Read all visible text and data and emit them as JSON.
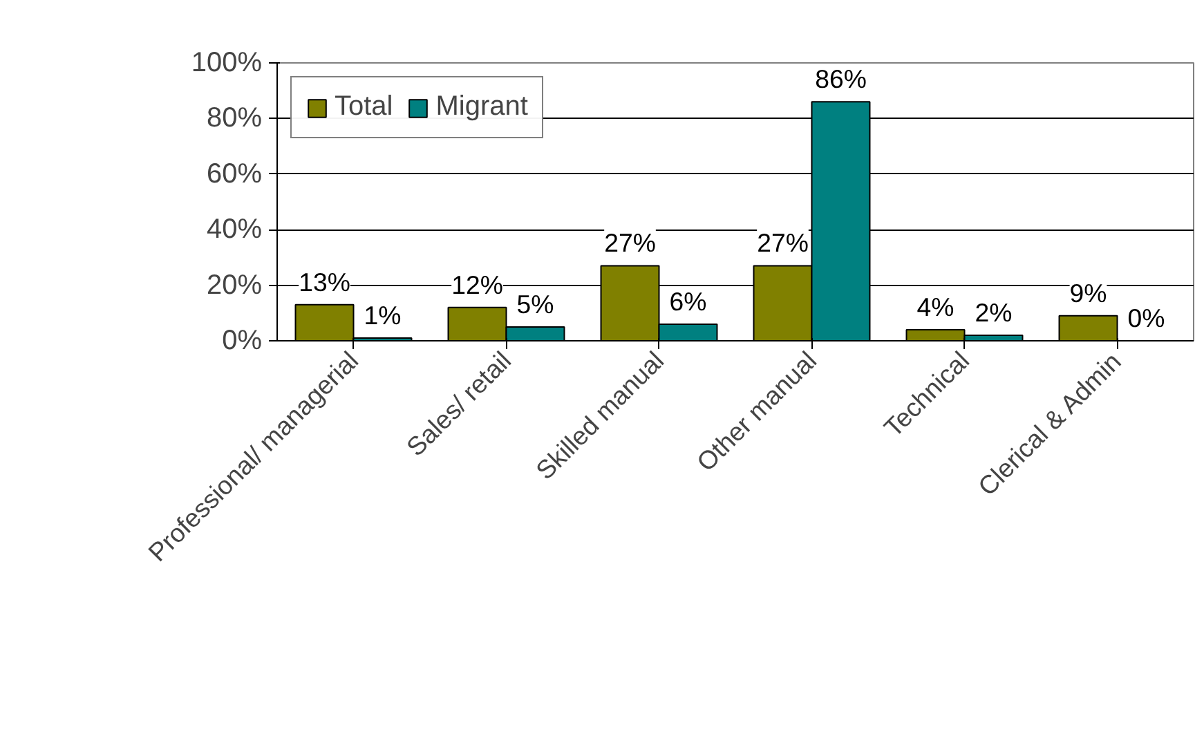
{
  "chart_data": {
    "type": "bar",
    "categories": [
      "Professional/ managerial",
      "Sales/ retail",
      "Skilled manual",
      "Other manual",
      "Technical",
      "Clerical & Admin"
    ],
    "series": [
      {
        "name": "Total",
        "color": "#808000",
        "values": [
          13,
          12,
          27,
          27,
          4,
          9
        ],
        "value_labels": [
          "13%",
          "12%",
          "27%",
          "27%",
          "4%",
          "9%"
        ]
      },
      {
        "name": "Migrant",
        "color": "#008080",
        "values": [
          1,
          5,
          6,
          86,
          2,
          0
        ],
        "value_labels": [
          "1%",
          "5%",
          "6%",
          "86%",
          "2%",
          "0%"
        ]
      }
    ],
    "ylim": [
      0,
      100
    ],
    "yticks": [
      {
        "value": 0,
        "label": "0%"
      },
      {
        "value": 20,
        "label": "20%"
      },
      {
        "value": 40,
        "label": "40%"
      },
      {
        "value": 60,
        "label": "60%"
      },
      {
        "value": 80,
        "label": "80%"
      },
      {
        "value": 100,
        "label": "100%"
      }
    ],
    "grid": "y",
    "legend": "top left"
  }
}
